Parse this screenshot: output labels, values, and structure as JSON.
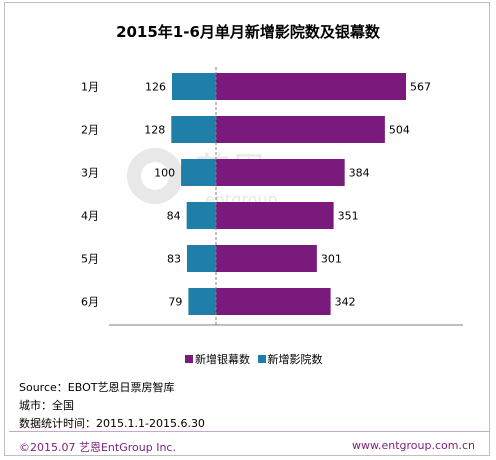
{
  "chart_data": {
    "type": "bar",
    "orientation": "horizontal",
    "title": "2015年1-6月单月新增影院数及银幕数",
    "categories": [
      "1月",
      "2月",
      "3月",
      "4月",
      "5月",
      "6月"
    ],
    "series": [
      {
        "name": "新增银幕数",
        "color": "#7b1a7d",
        "values": [
          567,
          504,
          384,
          351,
          301,
          342
        ]
      },
      {
        "name": "新增影院数",
        "color": "#1f7fa8",
        "values": [
          126,
          128,
          100,
          84,
          83,
          79
        ]
      }
    ],
    "legend_position": "bottom",
    "grid": false
  },
  "source": {
    "line1": "Source：EBOT艺恩日票房智库",
    "line2": "城市：全国",
    "line3": "数据统计时间：2015.1.1-2015.6.30"
  },
  "footer": {
    "left": "©2015.07  艺恩EntGroup Inc.",
    "right": "www.entgroup.com.cn"
  },
  "watermark": {
    "text": "艺恩",
    "subtext": "entgroup"
  }
}
